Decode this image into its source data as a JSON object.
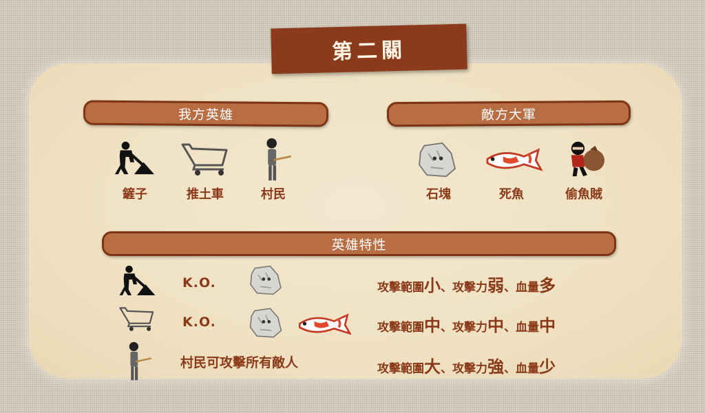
{
  "level_title": "第二關",
  "sections": {
    "heroes_header": "我方英雄",
    "enemies_header": "敵方大軍",
    "traits_header": "英雄特性"
  },
  "heroes": [
    {
      "icon": "digger-icon",
      "label": "鏟子"
    },
    {
      "icon": "cart-icon",
      "label": "推土車"
    },
    {
      "icon": "villager-icon",
      "label": "村民"
    }
  ],
  "enemies": [
    {
      "icon": "rock-icon",
      "label": "石塊"
    },
    {
      "icon": "dead-fish-icon",
      "label": "死魚"
    },
    {
      "icon": "thief-icon",
      "label": "偷魚賊"
    }
  ],
  "traits": [
    {
      "ko": "K.O.",
      "r1": "攻擊範圍",
      "v1": "小",
      "r2": "、攻擊力",
      "v2": "弱",
      "r3": "、血量",
      "v3": "多"
    },
    {
      "ko": "K.O.",
      "r1": "攻擊範圍",
      "v1": "中",
      "r2": "、攻擊力",
      "v2": "中",
      "r3": "、血量",
      "v3": "中"
    },
    {
      "ko": "村民可攻擊所有敵人",
      "r1": "攻擊範圍",
      "v1": "大",
      "r2": "、攻擊力",
      "v2": "強",
      "r3": "、血量",
      "v3": "少"
    }
  ],
  "colors": {
    "banner": "#8b3a1b",
    "bar": "#b86e42",
    "text": "#8a3a18",
    "panel": "#f1e4c8"
  }
}
